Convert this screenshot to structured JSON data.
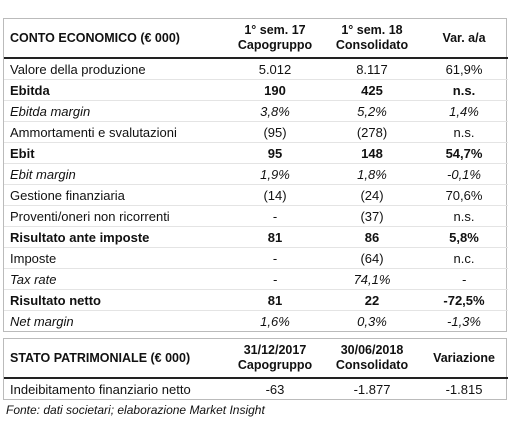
{
  "income_table": {
    "header": [
      "CONTO ECONOMICO (€ 000)",
      [
        "1° sem. 17",
        "Capogruppo"
      ],
      [
        "1° sem. 18",
        "Consolidato"
      ],
      "Var. a/a"
    ],
    "rows": [
      [
        "Valore della produzione",
        "5.012",
        "8.117",
        "61,9%"
      ],
      [
        "Ebitda",
        "190",
        "425",
        "n.s."
      ],
      [
        "Ebitda margin",
        "3,8%",
        "5,2%",
        "1,4%"
      ],
      [
        "Ammortamenti  e svalutazioni",
        "(95)",
        "(278)",
        "n.s."
      ],
      [
        "Ebit",
        "95",
        "148",
        "54,7%"
      ],
      [
        "Ebit margin",
        "1,9%",
        "1,8%",
        "-0,1%"
      ],
      [
        "Gestione finanziaria",
        "(14)",
        "(24)",
        "70,6%"
      ],
      [
        "Proventi/oneri non ricorrenti",
        "-",
        "(37)",
        "n.s."
      ],
      [
        "Risultato ante imposte",
        "81",
        "86",
        "5,8%"
      ],
      [
        "Imposte",
        "-",
        "(64)",
        "n.c."
      ],
      [
        "Tax rate",
        "-",
        "74,1%",
        "-"
      ],
      [
        "Risultato netto",
        "81",
        "22",
        "-72,5%"
      ],
      [
        "Net margin",
        "1,6%",
        "0,3%",
        "-1,3%"
      ]
    ]
  },
  "balance_table": {
    "header": [
      "STATO PATRIMONIALE (€ 000)",
      [
        "31/12/2017",
        "Capogruppo"
      ],
      [
        "30/06/2018",
        "Consolidato"
      ],
      "Variazione"
    ],
    "rows": [
      [
        "Indeibitamento finanziario netto",
        "-63",
        "-1.877",
        "-1.815"
      ]
    ]
  },
  "footer": "Fonte: dati societari; elaborazione Market Insight"
}
